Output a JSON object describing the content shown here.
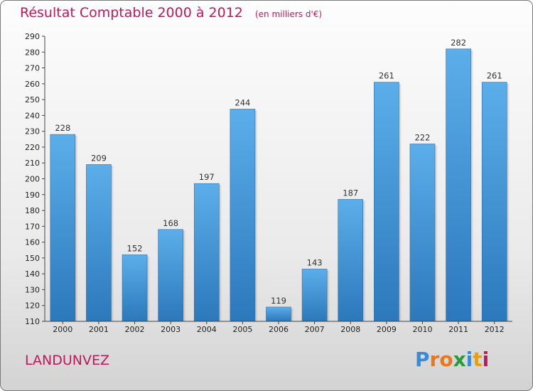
{
  "chart_data": {
    "type": "bar",
    "title": "Résultat Comptable 2000 à 2012",
    "subtitle": "(en milliers d'€)",
    "categories": [
      "2000",
      "2001",
      "2002",
      "2003",
      "2004",
      "2005",
      "2006",
      "2007",
      "2008",
      "2009",
      "2010",
      "2011",
      "2012"
    ],
    "values": [
      228,
      209,
      152,
      168,
      197,
      244,
      119,
      143,
      187,
      261,
      222,
      282,
      261
    ],
    "ylim": [
      110,
      290
    ],
    "ytick_step": 10,
    "xlabel": "",
    "ylabel": "",
    "grid": false,
    "bar_color": "#3d8fd6"
  },
  "footer": {
    "commune": "LANDUNVEZ",
    "logo_letters": [
      "P",
      "r",
      "o",
      "x",
      "i",
      "t",
      "i"
    ],
    "logo_colors": [
      "#3a8ad6",
      "#e8781e",
      "#e8781e",
      "#2a9a3a",
      "#3a8ad6",
      "#e3a01b",
      "#c0185c"
    ]
  }
}
